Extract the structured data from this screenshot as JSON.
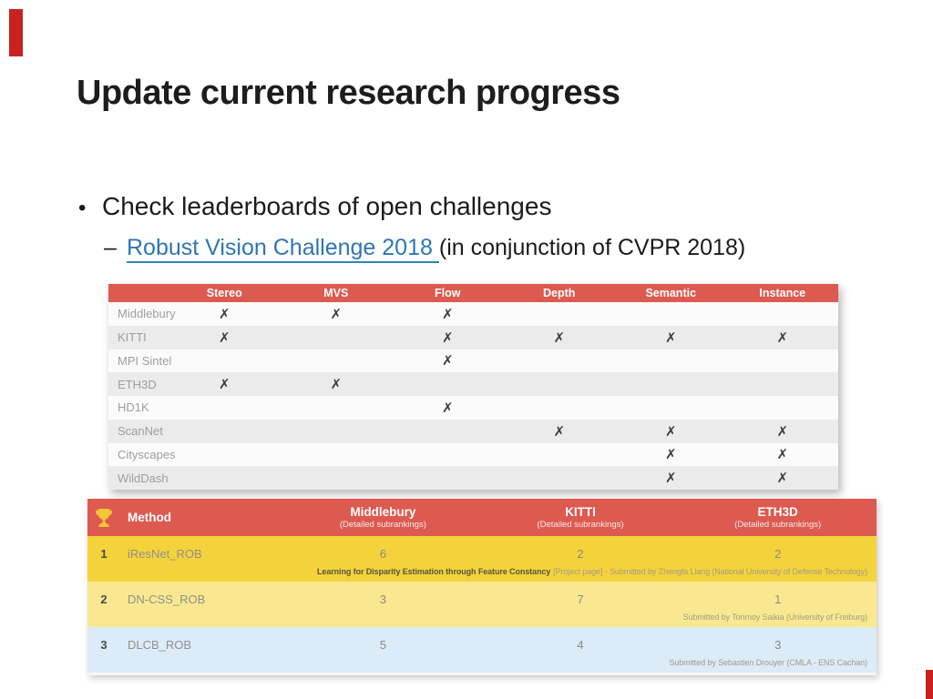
{
  "slide": {
    "title": "Update current research progress",
    "bullet_glyph": "•",
    "bullet_text": "Check leaderboards of open challenges",
    "sub_dash": "–",
    "link_text": "Robust Vision Challenge 2018",
    "sub_rest": "(in conjunction of CVPR 2018)",
    "accent_color": "#c9211e",
    "link_color": "#2e75b6"
  },
  "matrix_table": {
    "header_bg": "#dd5a50",
    "x_mark": "✗",
    "columns": [
      "Stereo",
      "MVS",
      "Flow",
      "Depth",
      "Semantic",
      "Instance"
    ],
    "rows": [
      {
        "label": "Middlebury",
        "marks": [
          1,
          1,
          1,
          0,
          0,
          0
        ]
      },
      {
        "label": "KITTI",
        "marks": [
          1,
          0,
          1,
          1,
          1,
          1
        ]
      },
      {
        "label": "MPI Sintel",
        "marks": [
          0,
          0,
          1,
          0,
          0,
          0
        ]
      },
      {
        "label": "ETH3D",
        "marks": [
          1,
          1,
          0,
          0,
          0,
          0
        ]
      },
      {
        "label": "HD1K",
        "marks": [
          0,
          0,
          1,
          0,
          0,
          0
        ]
      },
      {
        "label": "ScanNet",
        "marks": [
          0,
          0,
          0,
          1,
          1,
          1
        ]
      },
      {
        "label": "Cityscapes",
        "marks": [
          0,
          0,
          0,
          0,
          1,
          1
        ]
      },
      {
        "label": "WildDash",
        "marks": [
          0,
          0,
          0,
          0,
          1,
          1
        ]
      }
    ]
  },
  "leaderboard": {
    "header_bg": "#dd5a50",
    "trophy_color": "#f6c437",
    "method_label": "Method",
    "columns": [
      {
        "name": "Middlebury",
        "sub": "(Detailed subrankings)"
      },
      {
        "name": "KITTI",
        "sub": "(Detailed subrankings)"
      },
      {
        "name": "ETH3D",
        "sub": "(Detailed subrankings)"
      }
    ],
    "rows": [
      {
        "rank": "1",
        "method": "iResNet_ROB",
        "values": [
          "6",
          "2",
          "2"
        ],
        "note_strong": "Learning for Disparity Estimation through Feature Constancy",
        "note_rest": "[Project page] - Submitted by Zhengfa Liang (National University of Defense Technology)",
        "bg": "#f4d23c"
      },
      {
        "rank": "2",
        "method": "DN-CSS_ROB",
        "values": [
          "3",
          "7",
          "1"
        ],
        "note_strong": "",
        "note_rest": "Submitted by Tonmoy Saikia (University of Freiburg)",
        "bg": "#f9e88f"
      },
      {
        "rank": "3",
        "method": "DLCB_ROB",
        "values": [
          "5",
          "4",
          "3"
        ],
        "note_strong": "",
        "note_rest": "Submitted by Sebastien Drouyer (CMLA - ENS Cachan)",
        "bg": "#dcebf8"
      }
    ]
  }
}
